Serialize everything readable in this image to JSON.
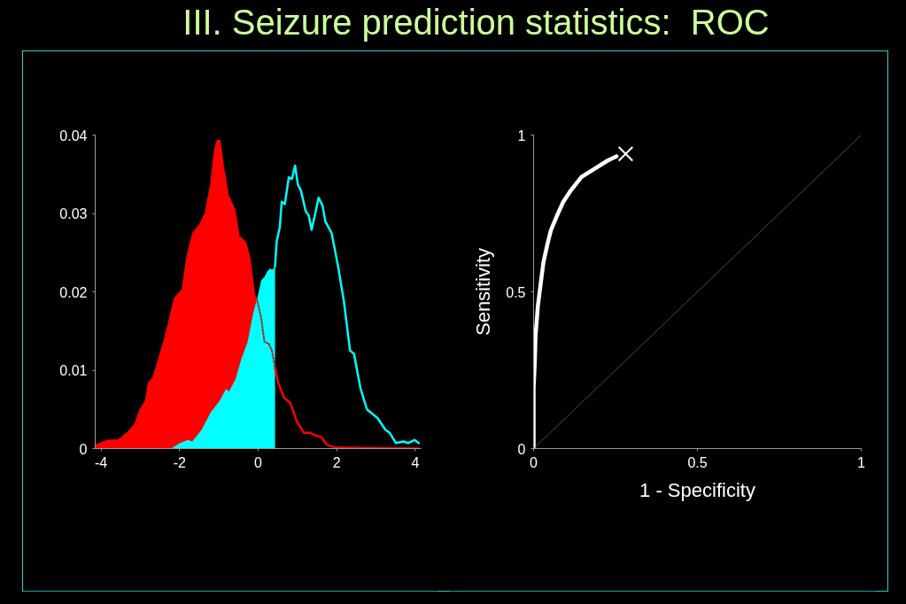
{
  "chart_data": [
    {
      "type": "area",
      "title": "III. Seizure prediction statistics:  ROC",
      "xlim": [
        -4.15,
        4.15
      ],
      "xticks": [
        -4,
        -2,
        0,
        2,
        4
      ],
      "ylim": [
        0,
        0.04
      ],
      "yticks": [
        0,
        0.01,
        0.02,
        0.03,
        0.04
      ],
      "series": [
        {
          "type": "area",
          "color": "#ff0000",
          "x": [
            -4.15,
            -3.86,
            -3.56,
            -3.32,
            -3.16,
            -3.04,
            -2.88,
            -2.81,
            -2.69,
            -2.53,
            -2.42,
            -2.27,
            -2.15,
            -1.95,
            -1.83,
            -1.68,
            -1.48,
            -1.36,
            -1.22,
            -1.13,
            -1.05,
            -0.96,
            -0.87,
            -0.75,
            -0.58,
            -0.47,
            -0.31,
            -0.19,
            -0.08,
            -0.04
          ],
          "values": [
            0.0005,
            0.0011,
            0.0012,
            0.0022,
            0.0031,
            0.0048,
            0.0062,
            0.0084,
            0.0091,
            0.0118,
            0.0136,
            0.0166,
            0.0192,
            0.0203,
            0.0245,
            0.0275,
            0.0288,
            0.0301,
            0.0338,
            0.038,
            0.0394,
            0.0394,
            0.036,
            0.0324,
            0.0305,
            0.0271,
            0.0264,
            0.0242,
            0.0197,
            0.0192
          ]
        },
        {
          "type": "area",
          "color": "#00ffff",
          "x": [
            -4.15,
            -2.22,
            -1.99,
            -1.79,
            -1.68,
            -1.44,
            -1.21,
            -0.98,
            -0.82,
            -0.74,
            -0.58,
            -0.43,
            -0.27,
            -0.12,
            0,
            0.08,
            0.16,
            0.23,
            0.31,
            0.35,
            0.43
          ],
          "values": [
            0,
            0,
            0.0007,
            0.0011,
            0.0009,
            0.0024,
            0.0046,
            0.0061,
            0.0076,
            0.0073,
            0.0088,
            0.0114,
            0.0136,
            0.0174,
            0.0197,
            0.0215,
            0.0219,
            0.0226,
            0.023,
            0.0228,
            0.0232
          ]
        },
        {
          "type": "line",
          "color": "#993333",
          "line_style": "dotted",
          "x": [
            -0.04,
            0.08,
            0.16,
            0.27,
            0.35,
            0.43
          ],
          "values": [
            0.0192,
            0.0166,
            0.0136,
            0.0134,
            0.0125,
            0.0103
          ]
        },
        {
          "type": "line",
          "color": "#ff0000",
          "x": [
            0.43,
            0.51,
            0.66,
            0.82,
            0.98,
            1.17,
            1.33,
            1.44,
            1.6,
            1.75,
            1.99,
            4.09
          ],
          "values": [
            0.0103,
            0.0084,
            0.0065,
            0.0058,
            0.0035,
            0.002,
            0.002,
            0.0017,
            0.0015,
            0.0005,
            0.0001,
            0
          ]
        },
        {
          "type": "line",
          "color": "#00ffff",
          "x": [
            0.43,
            0.47,
            0.55,
            0.6,
            0.68,
            0.78,
            0.86,
            0.94,
            1.01,
            1.09,
            1.21,
            1.29,
            1.36,
            1.44,
            1.54,
            1.64,
            1.71,
            1.87,
            2.03,
            2.18,
            2.34,
            2.44,
            2.61,
            2.77,
            3.04,
            3.24,
            3.35,
            3.51,
            3.7,
            3.82,
            3.98,
            4.09
          ],
          "values": [
            0.0232,
            0.0264,
            0.0282,
            0.0315,
            0.0312,
            0.0346,
            0.0344,
            0.0361,
            0.0337,
            0.0329,
            0.0303,
            0.0297,
            0.0279,
            0.0297,
            0.032,
            0.031,
            0.029,
            0.0275,
            0.0234,
            0.0189,
            0.0125,
            0.0121,
            0.0076,
            0.005,
            0.0039,
            0.0024,
            0.002,
            0.0007,
            0.0009,
            0.0007,
            0.0011,
            0.0007
          ]
        }
      ]
    },
    {
      "type": "line",
      "xlabel": "1 - Specificity",
      "ylabel": "Sensitivity",
      "xlim": [
        0,
        1
      ],
      "xticks": [
        0,
        0.5,
        1
      ],
      "ylim": [
        0,
        1
      ],
      "yticks": [
        0,
        0.5,
        1
      ],
      "series": [
        {
          "color": "#ffffff",
          "x": [
            0,
            0,
            0.004,
            0.006,
            0.013,
            0.022,
            0.03,
            0.044,
            0.053,
            0.072,
            0.09,
            0.114,
            0.146,
            0.188,
            0.225,
            0.253
          ],
          "values": [
            0,
            0.19,
            0.285,
            0.36,
            0.454,
            0.529,
            0.594,
            0.66,
            0.697,
            0.744,
            0.786,
            0.824,
            0.866,
            0.894,
            0.918,
            0.932
          ]
        },
        {
          "color": "#808080",
          "x": [
            0,
            1
          ],
          "values": [
            0,
            1
          ]
        },
        {
          "type": "scatter",
          "marker": "cross",
          "color": "#ffffff",
          "x": [
            0.281
          ],
          "values": [
            0.94
          ]
        }
      ]
    }
  ]
}
